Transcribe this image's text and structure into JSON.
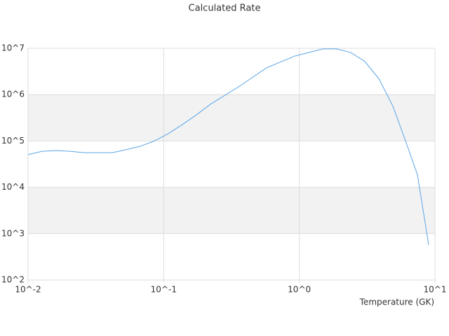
{
  "chart_data": {
    "type": "line",
    "title": "Calculated Rate",
    "x_label": "Temperature (GK)",
    "x": [
      0.01,
      0.0127,
      0.0161,
      0.0204,
      0.0259,
      0.0418,
      0.053,
      0.0673,
      0.0853,
      0.108,
      0.137,
      0.175,
      0.221,
      0.356,
      0.574,
      0.925,
      1.49,
      1.89,
      2.4,
      3.04,
      3.86,
      4.9,
      6.22,
      7.43,
      8.99
    ],
    "series": [
      {
        "color": "#5aa5e6",
        "values": [
          50600,
          60000,
          62000,
          60000,
          56000,
          56000,
          65000,
          77000,
          100000,
          144000,
          225000,
          370000,
          620000,
          1470000,
          3800000,
          6800000,
          9700000,
          9700000,
          8100000,
          5200000,
          2200000,
          560000,
          82000,
          18500,
          570
        ]
      }
    ],
    "x_log": true,
    "y_log": true,
    "xlim": [
      0.01,
      10
    ],
    "ylim": [
      100,
      10000000
    ],
    "xticks": [
      {
        "value": 0.01,
        "label": "10^-2"
      },
      {
        "value": 0.1,
        "label": "10^-1"
      },
      {
        "value": 1,
        "label": "10^0"
      },
      {
        "value": 10,
        "label": "10^1"
      }
    ],
    "yticks": [
      {
        "value": 100,
        "label": "10^2"
      },
      {
        "value": 1000,
        "label": "10^3"
      },
      {
        "value": 10000,
        "label": "10^4"
      },
      {
        "value": 100000,
        "label": "10^5"
      },
      {
        "value": 1000000,
        "label": "10^6"
      },
      {
        "value": 10000000,
        "label": "10^7"
      }
    ],
    "grid": true
  }
}
